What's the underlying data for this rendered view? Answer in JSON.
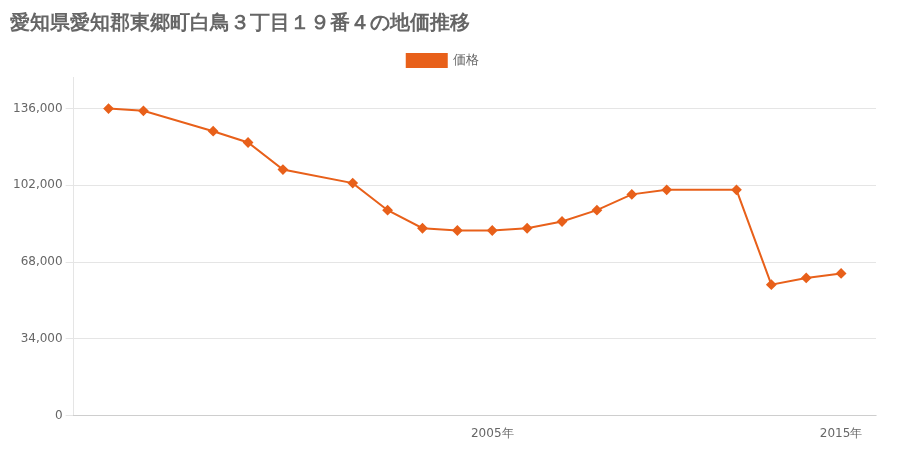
{
  "chart_data": {
    "type": "line",
    "title": "愛知県愛知郡東郷町白鳥３丁目１９番４の地価推移",
    "x": [
      1994,
      1995,
      1997,
      1998,
      1999,
      2001,
      2002,
      2003,
      2004,
      2005,
      2006,
      2007,
      2008,
      2009,
      2010,
      2012,
      2013,
      2014,
      2015
    ],
    "series": [
      {
        "name": "価格",
        "color": "#E8601A",
        "values": [
          136000,
          135000,
          126000,
          121000,
          109000,
          103000,
          91000,
          83000,
          82000,
          82000,
          83000,
          86000,
          91000,
          98000,
          100000,
          100000,
          58000,
          61000,
          63000
        ]
      }
    ],
    "xlim": [
      1993,
      2016
    ],
    "xticks": [
      {
        "value": 2005,
        "label": "2005年"
      },
      {
        "value": 2015,
        "label": "2015年"
      }
    ],
    "ylim": [
      0,
      150000
    ],
    "yticks": [
      0,
      {
        "value": 34000,
        "label": "34,000"
      },
      {
        "value": 68000,
        "label": "68,000"
      },
      {
        "value": 102000,
        "label": "102,000"
      },
      {
        "value": 136000,
        "label": "136,000"
      }
    ],
    "grid": "y",
    "marker": "diamond",
    "legend": "top"
  }
}
